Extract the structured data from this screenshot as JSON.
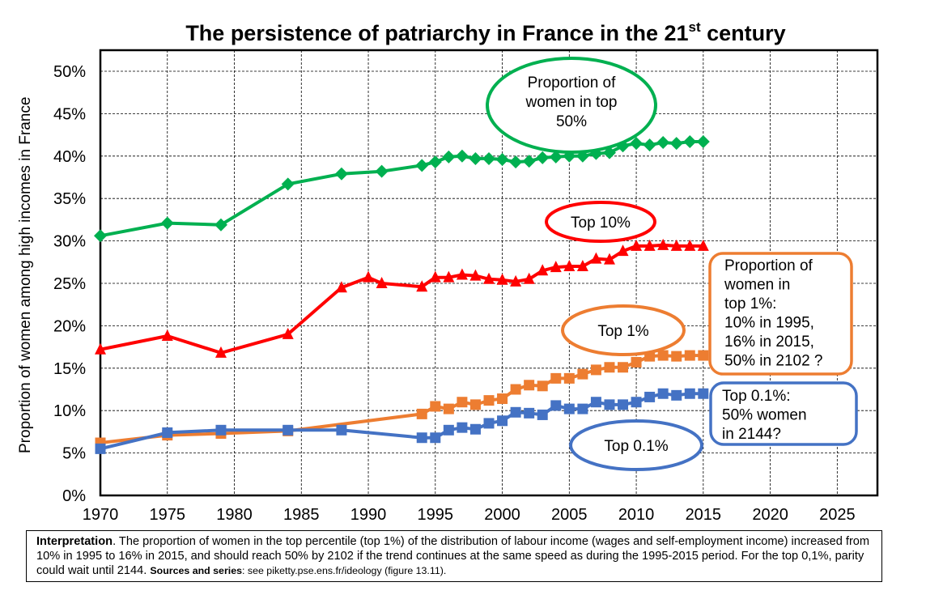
{
  "title": {
    "main": "The persistence of patriarchy in France in the 21",
    "superscript": "st",
    "suffix": " century"
  },
  "chart_data": {
    "type": "line",
    "title": "The persistence of patriarchy in France in the 21st century",
    "ylabel": "Proportion of women among high incomes in France",
    "xlabel": "",
    "xlim": [
      1970,
      2028
    ],
    "ylim": [
      0,
      0.52
    ],
    "x_ticks": [
      "1970",
      "1975",
      "1980",
      "1985",
      "1990",
      "1995",
      "2000",
      "2005",
      "2010",
      "2015",
      "2020",
      "2025"
    ],
    "y_ticks": [
      "0%",
      "5%",
      "10%",
      "15%",
      "20%",
      "25%",
      "30%",
      "35%",
      "40%",
      "45%",
      "50%"
    ],
    "grid": "dashed",
    "series": [
      {
        "name": "Proportion of women in top 50%",
        "color": "#00B050",
        "marker": "diamond",
        "points": [
          [
            1970,
            0.306
          ],
          [
            1975,
            0.321
          ],
          [
            1979,
            0.319
          ],
          [
            1984,
            0.367
          ],
          [
            1988,
            0.379
          ],
          [
            1991,
            0.382
          ],
          [
            1994,
            0.389
          ],
          [
            1995,
            0.393
          ],
          [
            1996,
            0.399
          ],
          [
            1997,
            0.4
          ],
          [
            1998,
            0.397
          ],
          [
            1999,
            0.397
          ],
          [
            2000,
            0.396
          ],
          [
            2001,
            0.393
          ],
          [
            2002,
            0.394
          ],
          [
            2003,
            0.398
          ],
          [
            2004,
            0.399
          ],
          [
            2005,
            0.4
          ],
          [
            2006,
            0.4
          ],
          [
            2007,
            0.403
          ],
          [
            2008,
            0.404
          ],
          [
            2009,
            0.412
          ],
          [
            2010,
            0.415
          ],
          [
            2011,
            0.413
          ],
          [
            2012,
            0.416
          ],
          [
            2013,
            0.415
          ],
          [
            2014,
            0.417
          ],
          [
            2015,
            0.417
          ]
        ]
      },
      {
        "name": "Top 10%",
        "color": "#FF0000",
        "marker": "triangle",
        "points": [
          [
            1970,
            0.172
          ],
          [
            1975,
            0.188
          ],
          [
            1979,
            0.168
          ],
          [
            1984,
            0.19
          ],
          [
            1988,
            0.245
          ],
          [
            1990,
            0.257
          ],
          [
            1991,
            0.25
          ],
          [
            1994,
            0.246
          ],
          [
            1995,
            0.257
          ],
          [
            1996,
            0.257
          ],
          [
            1997,
            0.26
          ],
          [
            1998,
            0.259
          ],
          [
            1999,
            0.255
          ],
          [
            2000,
            0.254
          ],
          [
            2001,
            0.252
          ],
          [
            2002,
            0.255
          ],
          [
            2003,
            0.265
          ],
          [
            2004,
            0.269
          ],
          [
            2005,
            0.27
          ],
          [
            2006,
            0.27
          ],
          [
            2007,
            0.279
          ],
          [
            2008,
            0.278
          ],
          [
            2009,
            0.288
          ],
          [
            2010,
            0.294
          ],
          [
            2011,
            0.294
          ],
          [
            2012,
            0.295
          ],
          [
            2013,
            0.294
          ],
          [
            2014,
            0.294
          ],
          [
            2015,
            0.294
          ]
        ]
      },
      {
        "name": "Top 1%",
        "color": "#ED7D31",
        "marker": "square",
        "points": [
          [
            1970,
            0.062
          ],
          [
            1975,
            0.071
          ],
          [
            1979,
            0.073
          ],
          [
            1984,
            0.076
          ],
          [
            1994,
            0.096
          ],
          [
            1995,
            0.105
          ],
          [
            1996,
            0.102
          ],
          [
            1997,
            0.11
          ],
          [
            1998,
            0.107
          ],
          [
            1999,
            0.112
          ],
          [
            2000,
            0.114
          ],
          [
            2001,
            0.125
          ],
          [
            2002,
            0.13
          ],
          [
            2003,
            0.129
          ],
          [
            2004,
            0.138
          ],
          [
            2005,
            0.138
          ],
          [
            2006,
            0.143
          ],
          [
            2007,
            0.148
          ],
          [
            2008,
            0.151
          ],
          [
            2009,
            0.151
          ],
          [
            2010,
            0.157
          ],
          [
            2011,
            0.164
          ],
          [
            2012,
            0.165
          ],
          [
            2013,
            0.164
          ],
          [
            2014,
            0.165
          ],
          [
            2015,
            0.165
          ]
        ]
      },
      {
        "name": "Top 0.1%",
        "color": "#4472C4",
        "marker": "square",
        "points": [
          [
            1970,
            0.055
          ],
          [
            1975,
            0.074
          ],
          [
            1979,
            0.077
          ],
          [
            1984,
            0.077
          ],
          [
            1988,
            0.077
          ],
          [
            1994,
            0.068
          ],
          [
            1995,
            0.068
          ],
          [
            1996,
            0.077
          ],
          [
            1997,
            0.08
          ],
          [
            1998,
            0.078
          ],
          [
            1999,
            0.085
          ],
          [
            2000,
            0.088
          ],
          [
            2001,
            0.098
          ],
          [
            2002,
            0.097
          ],
          [
            2003,
            0.095
          ],
          [
            2004,
            0.106
          ],
          [
            2005,
            0.102
          ],
          [
            2006,
            0.102
          ],
          [
            2007,
            0.11
          ],
          [
            2008,
            0.107
          ],
          [
            2009,
            0.107
          ],
          [
            2010,
            0.11
          ],
          [
            2011,
            0.116
          ],
          [
            2012,
            0.12
          ],
          [
            2013,
            0.118
          ],
          [
            2014,
            0.12
          ],
          [
            2015,
            0.12
          ]
        ]
      }
    ],
    "annotations": [
      {
        "id": "ann-top50",
        "text": [
          "Proportion of",
          "women in top",
          "50%"
        ],
        "color": "#00B050",
        "shape": "ellipse"
      },
      {
        "id": "ann-top10",
        "text": [
          "Top 10%"
        ],
        "color": "#FF0000",
        "shape": "ellipse"
      },
      {
        "id": "ann-top1",
        "text": [
          "Top 1%"
        ],
        "color": "#ED7D31",
        "shape": "ellipse"
      },
      {
        "id": "ann-top01",
        "text": [
          "Top 0.1%"
        ],
        "color": "#4472C4",
        "shape": "ellipse"
      },
      {
        "id": "box-top1",
        "text": [
          "Proportion of",
          "women in",
          "top 1%:",
          "10% in 1995,",
          "16% in 2015,",
          "50% in 2102 ?"
        ],
        "color": "#ED7D31",
        "shape": "roundbox"
      },
      {
        "id": "box-top01",
        "text": [
          "Top 0.1%:",
          "50% women",
          "in 2144?"
        ],
        "color": "#4472C4",
        "shape": "roundbox"
      }
    ]
  },
  "interpretation": {
    "label": "Interpretation",
    "text": ". The proportion of women in the top percentile (top 1%) of the distribution of labour income (wages and self-employment income) increased from 10% in 1995 to 16% in 2015, and should reach 50% by 2102 if the trend continues at the same speed as during the 1995-2015 period. For the top 0,1%, parity could wait until 2144.",
    "sources_label": "Sources and series",
    "sources_text": ": see piketty.pse.ens.fr/ideology (figure 13.11)."
  }
}
